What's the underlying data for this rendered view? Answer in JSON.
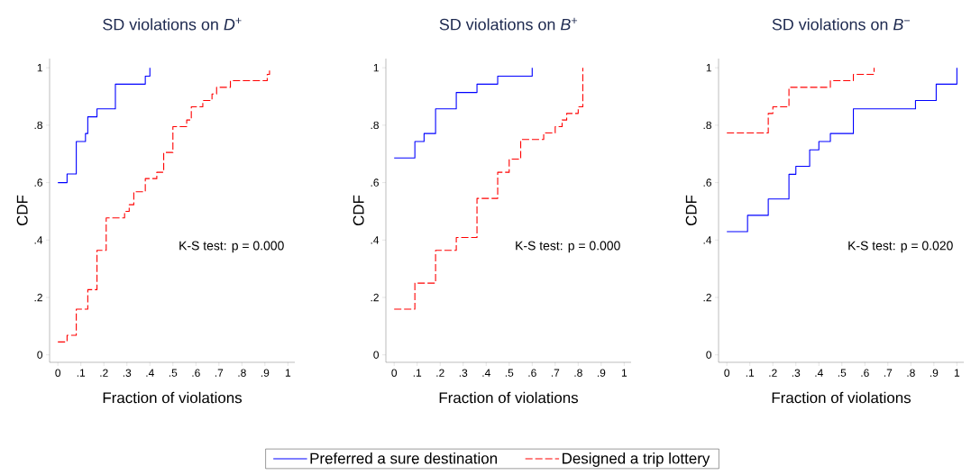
{
  "chart_data": [
    {
      "type": "step",
      "title": "SD violations on *D*$^{+}$",
      "xlabel": "Fraction of violations",
      "ylabel": "CDF",
      "xlim": [
        -0.036,
        1.03
      ],
      "ylim": [
        -0.026,
        1.032
      ],
      "xticks": [
        0,
        {
          "value": 0.1,
          "label": ".1"
        },
        {
          "value": 0.2,
          "label": ".2"
        },
        {
          "value": 0.3,
          "label": ".3"
        },
        {
          "value": 0.4,
          "label": ".4"
        },
        {
          "value": 0.5,
          "label": ".5"
        },
        {
          "value": 0.6,
          "label": ".6"
        },
        {
          "value": 0.7,
          "label": ".7"
        },
        {
          "value": 0.8,
          "label": ".8"
        },
        {
          "value": 0.9,
          "label": ".9"
        },
        1
      ],
      "yticks": [
        0,
        {
          "value": 0.2,
          "label": ".2"
        },
        {
          "value": 0.4,
          "label": ".4"
        },
        {
          "value": 0.6,
          "label": ".6"
        },
        {
          "value": 0.8,
          "label": ".8"
        },
        1
      ],
      "legend": "bottom",
      "annotations": [
        "K-S test: p = 0.000"
      ],
      "series": [
        {
          "name": "Preferred a sure destination",
          "color": "#0000ff",
          "line_style": "solid",
          "x": [
            0,
            0.04,
            0.08,
            0.12,
            0.13,
            0.17,
            0.25,
            0.38,
            0.4
          ],
          "values": [
            0.6,
            0.63,
            0.743,
            0.771,
            0.829,
            0.857,
            0.943,
            0.971,
            1.0
          ]
        },
        {
          "name": "Designed a trip lottery",
          "color": "#ff0000",
          "line_style": "dashed",
          "x": [
            0,
            0.04,
            0.08,
            0.13,
            0.17,
            0.21,
            0.29,
            0.31,
            0.33,
            0.38,
            0.43,
            0.46,
            0.5,
            0.56,
            0.58,
            0.63,
            0.67,
            0.69,
            0.75,
            0.91,
            0.92
          ],
          "values": [
            0.045,
            0.068,
            0.159,
            0.227,
            0.364,
            0.477,
            0.5,
            0.523,
            0.568,
            0.614,
            0.636,
            0.705,
            0.795,
            0.818,
            0.864,
            0.886,
            0.909,
            0.932,
            0.955,
            0.977,
            1.0
          ]
        }
      ]
    },
    {
      "type": "step",
      "title": "SD violations on *B*$^{+}$",
      "xlabel": "Fraction of violations",
      "ylabel": "CDF",
      "xlim": [
        -0.036,
        1.03
      ],
      "ylim": [
        -0.026,
        1.032
      ],
      "xticks": [
        0,
        {
          "value": 0.1,
          "label": ".1"
        },
        {
          "value": 0.2,
          "label": ".2"
        },
        {
          "value": 0.3,
          "label": ".3"
        },
        {
          "value": 0.4,
          "label": ".4"
        },
        {
          "value": 0.5,
          "label": ".5"
        },
        {
          "value": 0.6,
          "label": ".6"
        },
        {
          "value": 0.7,
          "label": ".7"
        },
        {
          "value": 0.8,
          "label": ".8"
        },
        {
          "value": 0.9,
          "label": ".9"
        },
        1
      ],
      "yticks": [
        0,
        {
          "value": 0.2,
          "label": ".2"
        },
        {
          "value": 0.4,
          "label": ".4"
        },
        {
          "value": 0.6,
          "label": ".6"
        },
        {
          "value": 0.8,
          "label": ".8"
        },
        1
      ],
      "annotations": [
        "K-S test: p = 0.000"
      ],
      "series": [
        {
          "color": "#0000ff",
          "line_style": "solid",
          "x": [
            0,
            0.09,
            0.13,
            0.18,
            0.27,
            0.36,
            0.45,
            0.6
          ],
          "values": [
            0.686,
            0.743,
            0.771,
            0.857,
            0.914,
            0.943,
            0.971,
            1.0
          ]
        },
        {
          "color": "#ff0000",
          "line_style": "dashed",
          "x": [
            0,
            0.09,
            0.18,
            0.27,
            0.36,
            0.45,
            0.5,
            0.55,
            0.65,
            0.7,
            0.73,
            0.75,
            0.8,
            0.82
          ],
          "values": [
            0.159,
            0.25,
            0.364,
            0.409,
            0.545,
            0.636,
            0.682,
            0.75,
            0.773,
            0.795,
            0.818,
            0.841,
            0.864,
            1.0
          ]
        }
      ]
    },
    {
      "type": "step",
      "title": "SD violations on *B*$^{−}$",
      "xlabel": "Fraction of violations",
      "ylabel": "CDF",
      "xlim": [
        -0.036,
        1.03
      ],
      "ylim": [
        -0.026,
        1.032
      ],
      "xticks": [
        0,
        {
          "value": 0.1,
          "label": ".1"
        },
        {
          "value": 0.2,
          "label": ".2"
        },
        {
          "value": 0.3,
          "label": ".3"
        },
        {
          "value": 0.4,
          "label": ".4"
        },
        {
          "value": 0.5,
          "label": ".5"
        },
        {
          "value": 0.6,
          "label": ".6"
        },
        {
          "value": 0.7,
          "label": ".7"
        },
        {
          "value": 0.8,
          "label": ".8"
        },
        {
          "value": 0.9,
          "label": ".9"
        },
        1
      ],
      "yticks": [
        0,
        {
          "value": 0.2,
          "label": ".2"
        },
        {
          "value": 0.4,
          "label": ".4"
        },
        {
          "value": 0.6,
          "label": ".6"
        },
        {
          "value": 0.8,
          "label": ".8"
        },
        1
      ],
      "annotations": [
        "K-S test: p = 0.020"
      ],
      "series": [
        {
          "color": "#0000ff",
          "line_style": "solid",
          "x": [
            0,
            0.09,
            0.18,
            0.27,
            0.3,
            0.36,
            0.4,
            0.45,
            0.55,
            0.82,
            0.91,
            1.0
          ],
          "values": [
            0.429,
            0.486,
            0.543,
            0.629,
            0.657,
            0.714,
            0.743,
            0.771,
            0.857,
            0.886,
            0.943,
            1.0
          ]
        },
        {
          "color": "#ff0000",
          "line_style": "dashed",
          "x": [
            0,
            0.18,
            0.2,
            0.27,
            0.45,
            0.55,
            0.64
          ],
          "values": [
            0.773,
            0.841,
            0.864,
            0.932,
            0.955,
            0.977,
            1.0
          ]
        }
      ]
    }
  ]
}
